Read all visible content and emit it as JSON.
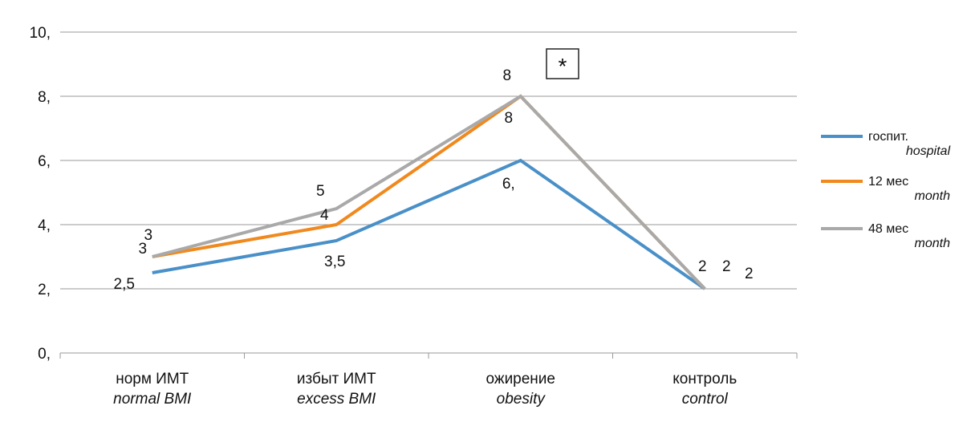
{
  "chart_data": {
    "type": "line",
    "categories": [
      {
        "label": "норм ИМТ",
        "label_en": "normal BMI"
      },
      {
        "label": "избыт ИМТ",
        "label_en": "excess BMI"
      },
      {
        "label": "ожирение",
        "label_en": "obesity"
      },
      {
        "label": "контроль",
        "label_en": "control"
      }
    ],
    "y_ticks": [
      "0,",
      "2,",
      "4,",
      "6,",
      "8,",
      "10,"
    ],
    "ylim": [
      0,
      10
    ],
    "grid": true,
    "legend_position": "right",
    "series": [
      {
        "name": "госпит.",
        "name_en": "hospital",
        "color": "#4a90c8",
        "values": [
          2.5,
          3.5,
          6,
          2
        ],
        "labels": [
          "2,5",
          "3,5",
          "6,",
          "2"
        ]
      },
      {
        "name": "12 мес",
        "name_en": "month",
        "color": "#f0891e",
        "values": [
          3,
          4,
          8,
          2
        ],
        "labels": [
          "3",
          "4",
          "8",
          "2"
        ]
      },
      {
        "name": "48 мес",
        "name_en": "month",
        "color": "#a9a9a9",
        "values": [
          3,
          4.5,
          8,
          2
        ],
        "labels": [
          "3",
          "5",
          "8",
          "2"
        ]
      }
    ],
    "annotation": "*"
  }
}
